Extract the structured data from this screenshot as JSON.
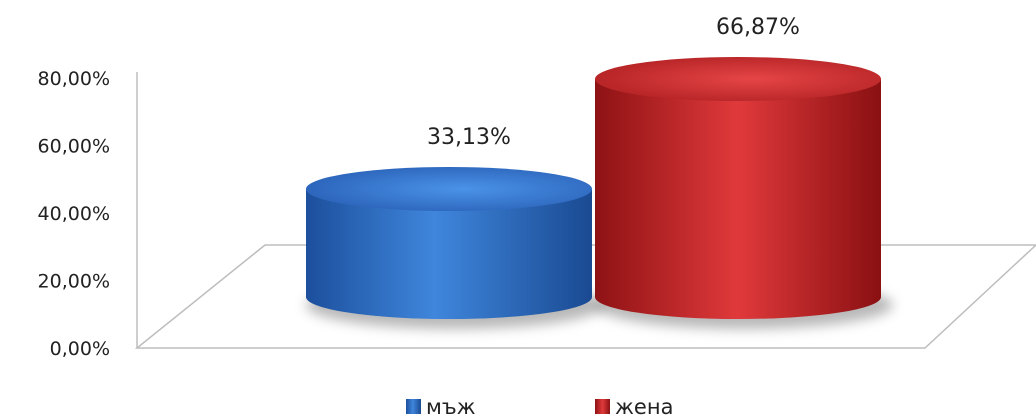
{
  "chart_data": {
    "type": "bar",
    "style": "3d-cylinder",
    "categories": [
      "мъж",
      "жена"
    ],
    "values": [
      33.13,
      66.87
    ],
    "data_labels": [
      "33,13%",
      "66,87%"
    ],
    "ylim": [
      0,
      80
    ],
    "yticks": [
      0,
      20,
      40,
      60,
      80
    ],
    "ytick_labels": [
      "0,00%",
      "20,00%",
      "40,00%",
      "60,00%",
      "80,00%"
    ],
    "title": "",
    "xlabel": "",
    "ylabel": "",
    "legend": {
      "position": "bottom",
      "entries": [
        "мъж",
        "жена"
      ]
    },
    "grid": false,
    "colors": [
      "#2f6fc4",
      "#c8282a"
    ]
  }
}
